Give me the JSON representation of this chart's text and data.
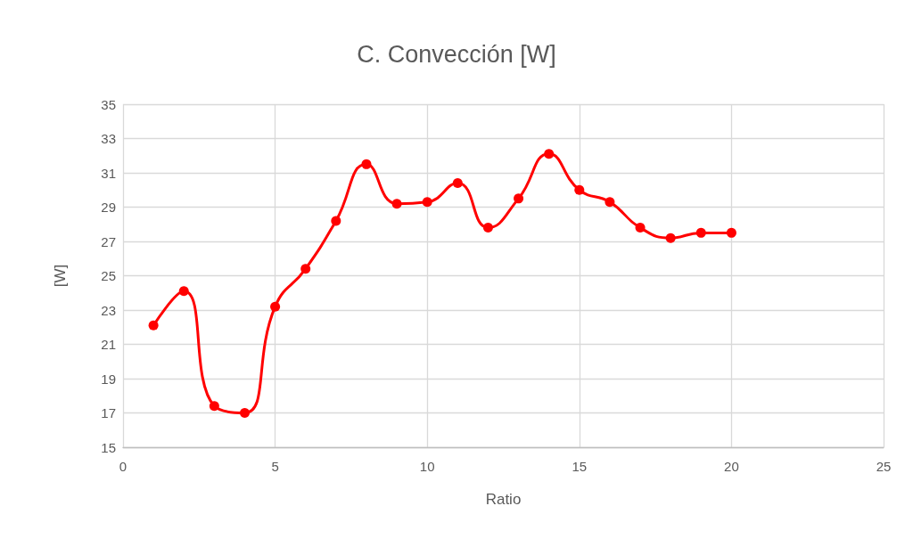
{
  "chart_data": {
    "type": "line",
    "title": "C. Convección [W]",
    "xlabel": "Ratio",
    "ylabel": "[W]",
    "x": [
      1,
      2,
      3,
      4,
      5,
      6,
      7,
      8,
      9,
      10,
      11,
      12,
      13,
      14,
      15,
      16,
      17,
      18,
      19,
      20
    ],
    "series": [
      {
        "color": "#ff0000",
        "values": [
          22.1,
          24.1,
          17.4,
          17.0,
          23.2,
          25.4,
          28.2,
          31.5,
          29.2,
          29.3,
          30.4,
          27.8,
          29.5,
          32.1,
          30.0,
          29.3,
          27.8,
          27.2,
          27.5,
          27.5
        ]
      }
    ],
    "xlim": [
      0,
      25
    ],
    "xticks": [
      0,
      5,
      10,
      15,
      20,
      25
    ],
    "ylim": [
      15,
      35
    ],
    "yticks": [
      15,
      17,
      19,
      21,
      23,
      25,
      27,
      29,
      31,
      33,
      35
    ],
    "grid": true,
    "marker": "circle",
    "line_style": "solid"
  }
}
